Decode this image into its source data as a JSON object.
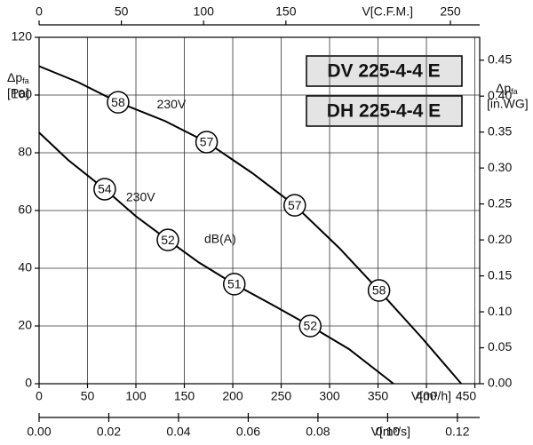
{
  "chart_data": {
    "type": "line",
    "models": [
      "DV 225-4-4 E",
      "DH 225-4-4 E"
    ],
    "x_label": "V[m³/h]",
    "x2_label": "V[C.F.M.]",
    "x3_label": "V[m³/s]",
    "y_label": {
      "symbol": "Δp",
      "subscript": "fa",
      "unit": "[Pa]"
    },
    "y2_label": {
      "symbol": "Δp",
      "subscript": "fa",
      "unit": "[in.WG]"
    },
    "marker_unit_label": "dB(A)",
    "xlim": [
      0,
      455
    ],
    "xticks": [
      0,
      50,
      100,
      150,
      200,
      250,
      300,
      350,
      400,
      450
    ],
    "x2lim": [
      0,
      267.8
    ],
    "x2ticks": [
      0,
      50,
      100,
      150,
      250
    ],
    "x3lim": [
      0,
      0.1264
    ],
    "x3ticks": [
      {
        "value": 0,
        "label": "0.00"
      },
      {
        "value": 0.02,
        "label": "0.02"
      },
      {
        "value": 0.04,
        "label": "0.04"
      },
      {
        "value": 0.06,
        "label": "0.06"
      },
      {
        "value": 0.08,
        "label": "0.08"
      },
      {
        "value": 0.1,
        "label": "0.10"
      },
      {
        "value": 0.12,
        "label": "0.12"
      }
    ],
    "ylim": [
      0,
      120
    ],
    "yticks": [
      0,
      20,
      40,
      60,
      80,
      100,
      120
    ],
    "y2lim": [
      0,
      0.4818
    ],
    "y2ticks": [
      {
        "value": 0,
        "label": "0.00"
      },
      {
        "value": 0.05,
        "label": "0.05"
      },
      {
        "value": 0.1,
        "label": "0.10"
      },
      {
        "value": 0.15,
        "label": "0.15"
      },
      {
        "value": 0.2,
        "label": "0.20"
      },
      {
        "value": 0.25,
        "label": "0.25"
      },
      {
        "value": 0.3,
        "label": "0.30"
      },
      {
        "value": 0.35,
        "label": "0.35"
      },
      {
        "value": 0.4,
        "label": "0.40"
      },
      {
        "value": 0.45,
        "label": "0.45"
      }
    ],
    "grid": true,
    "series": [
      {
        "name": "230V",
        "color": "#000000",
        "x": [
          0,
          40,
          81.6,
          130,
          173,
          220,
          264,
          310,
          351,
          395,
          436
        ],
        "values": [
          110,
          104.5,
          97.5,
          91,
          83.7,
          73,
          61.8,
          47,
          32.3,
          16,
          0
        ],
        "markers": [
          {
            "x": 81.6,
            "y": 97.5,
            "db": 58
          },
          {
            "x": 173,
            "y": 83.7,
            "db": 57
          },
          {
            "x": 264,
            "y": 61.8,
            "db": 57
          },
          {
            "x": 351,
            "y": 32.3,
            "db": 58
          }
        ]
      },
      {
        "name": "230V",
        "color": "#000000",
        "x": [
          0,
          30,
          67.8,
          100,
          133,
          165,
          201.6,
          240,
          280,
          320,
          366
        ],
        "values": [
          87,
          77.5,
          67.4,
          58,
          49.8,
          42,
          34.5,
          27.5,
          20,
          12,
          0
        ],
        "markers": [
          {
            "x": 67.8,
            "y": 67.4,
            "db": 54
          },
          {
            "x": 133,
            "y": 49.8,
            "db": 52
          },
          {
            "x": 201.6,
            "y": 34.5,
            "db": 51
          },
          {
            "x": 280,
            "y": 20,
            "db": 52
          }
        ]
      }
    ]
  }
}
